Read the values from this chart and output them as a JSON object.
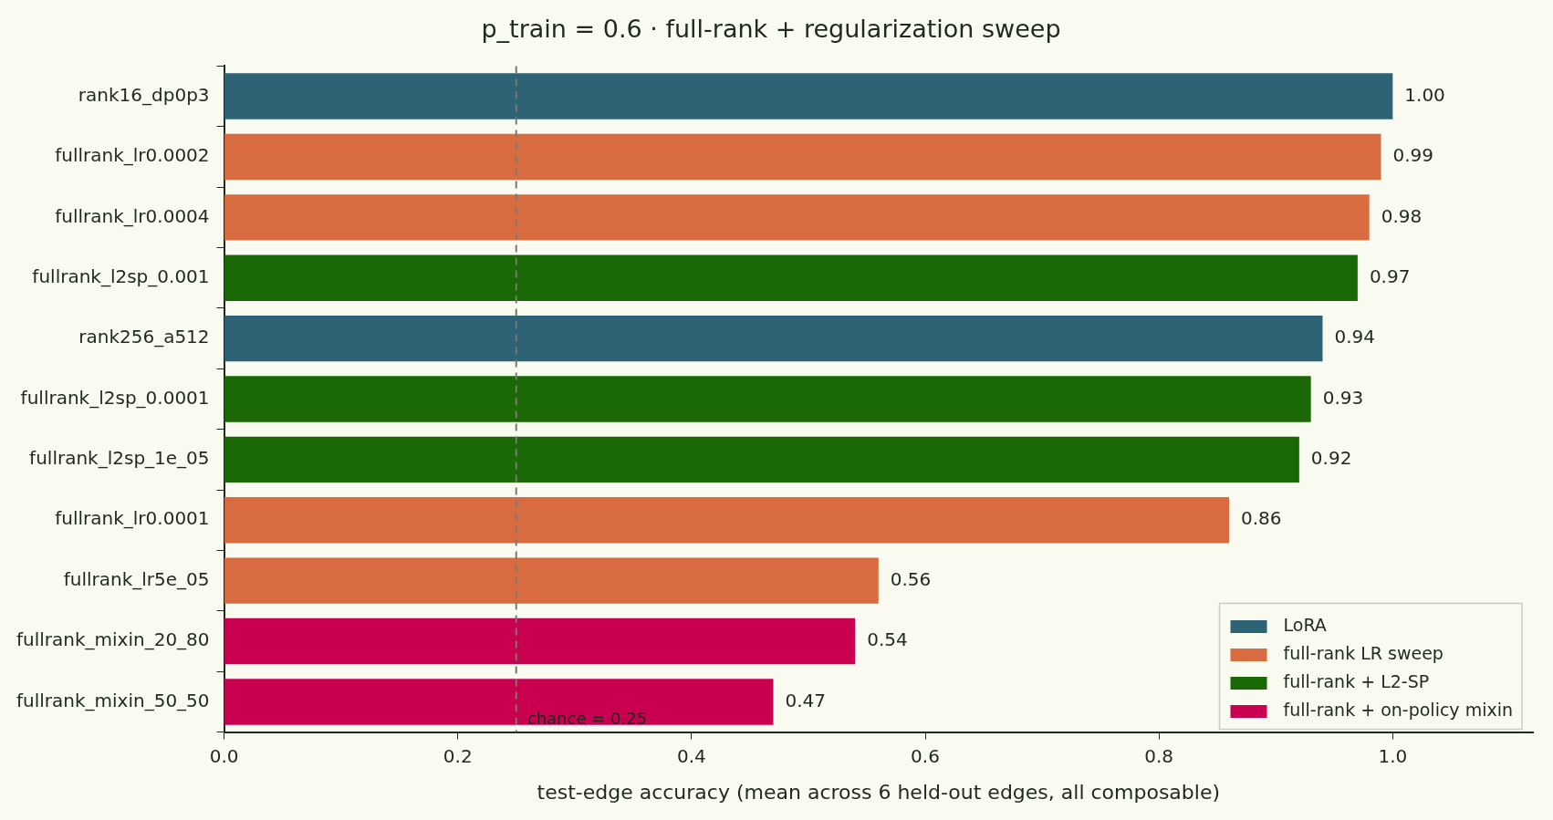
{
  "chart_data": {
    "type": "bar",
    "orientation": "horizontal",
    "title": "p_train = 0.6 · full-rank + regularization sweep",
    "xlabel": "test-edge accuracy (mean across 6 held-out edges, all composable)",
    "categories": [
      "rank16_dp0p3",
      "fullrank_lr0.0002",
      "fullrank_lr0.0004",
      "fullrank_l2sp_0.001",
      "rank256_a512",
      "fullrank_l2sp_0.0001",
      "fullrank_l2sp_1e_05",
      "fullrank_lr0.0001",
      "fullrank_lr5e_05",
      "fullrank_mixin_20_80",
      "fullrank_mixin_50_50"
    ],
    "series": [
      {
        "name": "LoRA",
        "color": "#2e6275",
        "values": [
          1.0,
          null,
          null,
          null,
          0.94,
          null,
          null,
          null,
          null,
          null,
          null
        ],
        "value_labels": [
          "1.00",
          null,
          null,
          null,
          "0.94",
          null,
          null,
          null,
          null,
          null,
          null
        ]
      },
      {
        "name": "full-rank LR sweep",
        "color": "#d96b40",
        "values": [
          null,
          0.99,
          0.98,
          null,
          null,
          null,
          null,
          0.86,
          0.56,
          null,
          null
        ],
        "value_labels": [
          null,
          "0.99",
          "0.98",
          null,
          null,
          null,
          null,
          "0.86",
          "0.56",
          null,
          null
        ]
      },
      {
        "name": "full-rank + L2-SP",
        "color": "#1a6806",
        "values": [
          null,
          null,
          null,
          0.97,
          null,
          0.93,
          0.92,
          null,
          null,
          null,
          null
        ],
        "value_labels": [
          null,
          null,
          null,
          "0.97",
          null,
          "0.93",
          "0.92",
          null,
          null,
          null,
          null
        ]
      },
      {
        "name": "full-rank + on-policy mixin",
        "color": "#c8004f",
        "values": [
          null,
          null,
          null,
          null,
          null,
          null,
          null,
          null,
          null,
          0.54,
          0.47
        ],
        "value_labels": [
          null,
          null,
          null,
          null,
          null,
          null,
          null,
          null,
          null,
          "0.54",
          "0.47"
        ]
      }
    ],
    "xlim": [
      0,
      1.12
    ],
    "xticks": [
      {
        "value": 0,
        "label": "0.0"
      },
      {
        "value": 0.2,
        "label": "0.2"
      },
      {
        "value": 0.4,
        "label": "0.4"
      },
      {
        "value": 0.6,
        "label": "0.6"
      },
      {
        "value": 0.8,
        "label": "0.8"
      },
      {
        "value": 1.0,
        "label": "1.0"
      }
    ],
    "ref_lines": [
      {
        "axis": "x",
        "value": 0.25,
        "label": "chance = 0.25",
        "color": "#7a7a70",
        "line_style": "dashed"
      }
    ],
    "legend": "bottom right",
    "grid": false
  }
}
